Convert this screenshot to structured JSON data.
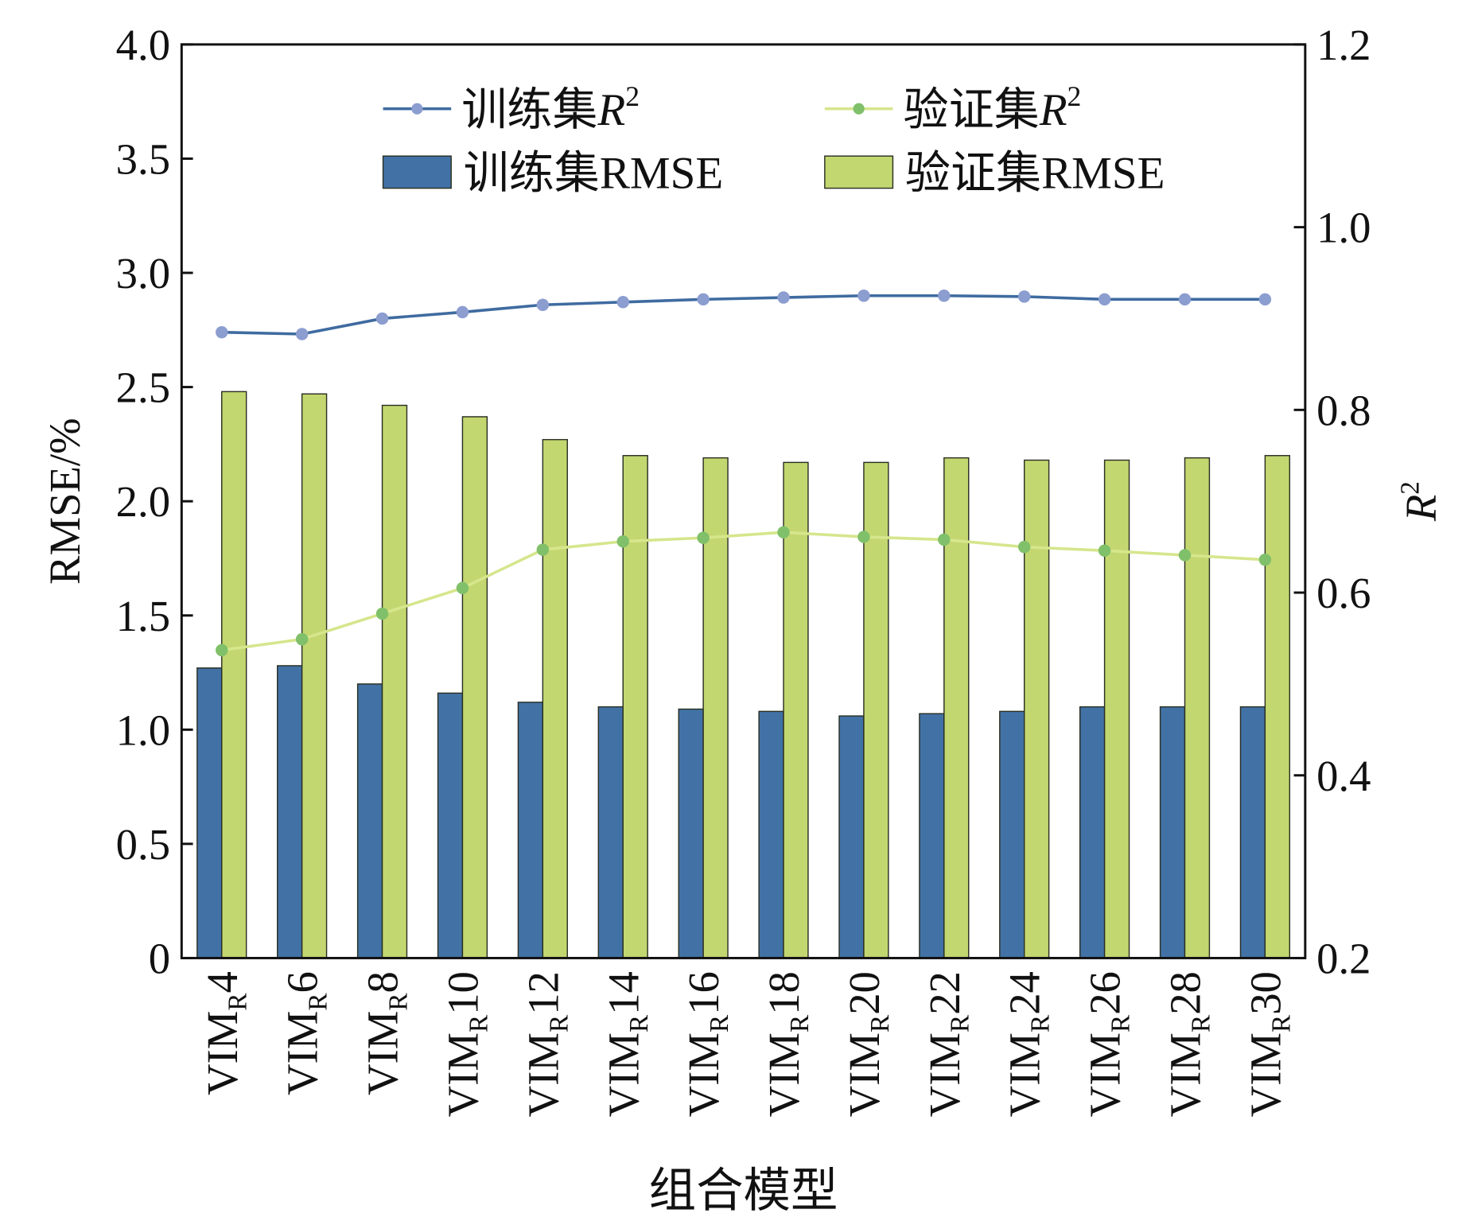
{
  "chart_data": {
    "type": "bar",
    "title": "",
    "xlabel": "组合模型",
    "ylabel": "RMSE/%",
    "y2label": "R",
    "y2label_sup": "2",
    "ylim": [
      0,
      4.0
    ],
    "y2lim": [
      0.2,
      1.2
    ],
    "yticks": [
      "0",
      "0.5",
      "1.0",
      "1.5",
      "2.0",
      "2.5",
      "3.0",
      "3.5",
      "4.0"
    ],
    "y2ticks": [
      "0.2",
      "0.4",
      "0.6",
      "0.8",
      "1.0",
      "1.2"
    ],
    "grid": false,
    "legend_position": "top",
    "categories": [
      {
        "base": "VIM",
        "sub": "R",
        "num": "4"
      },
      {
        "base": "VIM",
        "sub": "R",
        "num": "6"
      },
      {
        "base": "VIM",
        "sub": "R",
        "num": "8"
      },
      {
        "base": "VIM",
        "sub": "R",
        "num": "10"
      },
      {
        "base": "VIM",
        "sub": "R",
        "num": "12"
      },
      {
        "base": "VIM",
        "sub": "R",
        "num": "14"
      },
      {
        "base": "VIM",
        "sub": "R",
        "num": "16"
      },
      {
        "base": "VIM",
        "sub": "R",
        "num": "18"
      },
      {
        "base": "VIM",
        "sub": "R",
        "num": "20"
      },
      {
        "base": "VIM",
        "sub": "R",
        "num": "22"
      },
      {
        "base": "VIM",
        "sub": "R",
        "num": "24"
      },
      {
        "base": "VIM",
        "sub": "R",
        "num": "26"
      },
      {
        "base": "VIM",
        "sub": "R",
        "num": "28"
      },
      {
        "base": "VIM",
        "sub": "R",
        "num": "30"
      }
    ],
    "series": [
      {
        "name": "训练集RMSE",
        "kind": "bar",
        "axis": "left",
        "color": "#4272a5",
        "values": [
          1.27,
          1.28,
          1.2,
          1.16,
          1.12,
          1.1,
          1.09,
          1.08,
          1.06,
          1.07,
          1.08,
          1.1,
          1.1,
          1.1
        ]
      },
      {
        "name": "验证集RMSE",
        "kind": "bar",
        "axis": "left",
        "color": "#c3d771",
        "values": [
          2.48,
          2.47,
          2.42,
          2.37,
          2.27,
          2.2,
          2.19,
          2.17,
          2.17,
          2.19,
          2.18,
          2.18,
          2.19,
          2.2
        ]
      },
      {
        "name": "训练集R",
        "sup": "2",
        "kind": "line",
        "axis": "right",
        "color": "#3f6ba0",
        "marker": "#8c9dd0",
        "values": [
          0.885,
          0.883,
          0.9,
          0.907,
          0.915,
          0.918,
          0.921,
          0.923,
          0.925,
          0.925,
          0.924,
          0.921,
          0.921,
          0.921
        ]
      },
      {
        "name": "验证集R",
        "sup": "2",
        "kind": "line",
        "axis": "right",
        "color": "#d5e68c",
        "marker": "#80c06a",
        "values": [
          0.537,
          0.549,
          0.577,
          0.605,
          0.647,
          0.656,
          0.66,
          0.666,
          0.661,
          0.658,
          0.65,
          0.646,
          0.641,
          0.636
        ]
      }
    ]
  }
}
